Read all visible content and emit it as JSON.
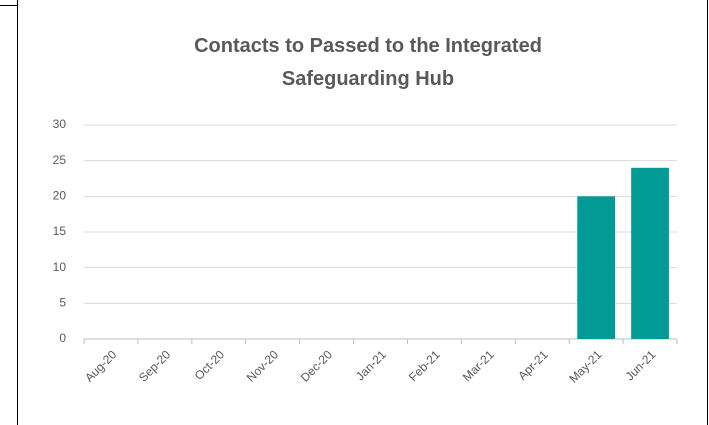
{
  "chart_data": {
    "type": "bar",
    "title": "Contacts to Passed to the Integrated Safeguarding Hub",
    "categories": [
      "Aug-20",
      "Sep-20",
      "Oct-20",
      "Nov-20",
      "Dec-20",
      "Jan-21",
      "Feb-21",
      "Mar-21",
      "Apr-21",
      "May-21",
      "Jun-21"
    ],
    "values": [
      null,
      null,
      null,
      null,
      null,
      null,
      null,
      null,
      null,
      20,
      24
    ],
    "color": "#009b95",
    "ylim": [
      0,
      30
    ],
    "yticks": [
      0,
      5,
      10,
      15,
      20,
      25,
      30
    ],
    "grid": true
  }
}
